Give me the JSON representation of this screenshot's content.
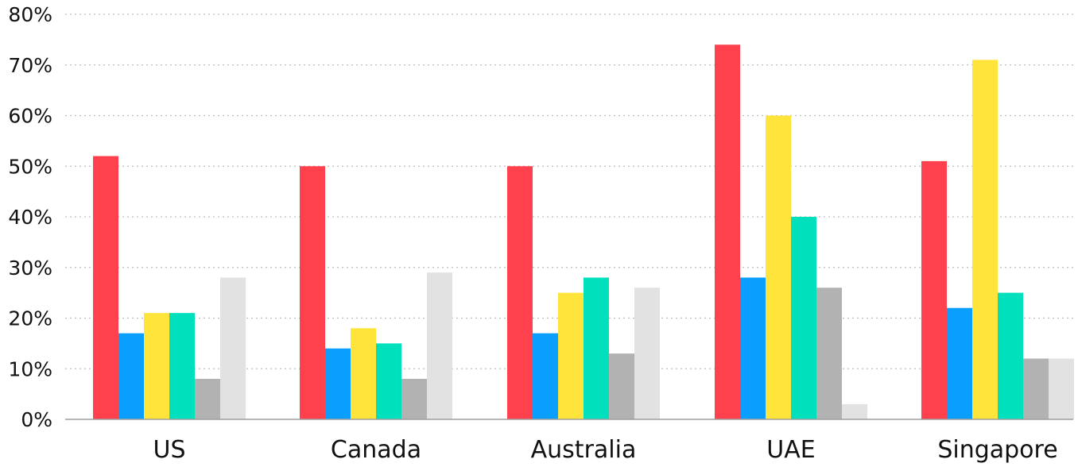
{
  "chart_data": {
    "type": "bar",
    "categories": [
      "US",
      "Canada",
      "Australia",
      "UAE",
      "Singapore"
    ],
    "series": [
      {
        "color": "#ff414d",
        "values": [
          52,
          50,
          50,
          74,
          51
        ]
      },
      {
        "color": "#0a9eff",
        "values": [
          17,
          14,
          17,
          28,
          22
        ]
      },
      {
        "color": "#ffe53b",
        "values": [
          21,
          18,
          25,
          60,
          71
        ]
      },
      {
        "color": "#00e0bc",
        "values": [
          21,
          15,
          28,
          40,
          25
        ]
      },
      {
        "color": "#b2b2b2",
        "values": [
          8,
          8,
          13,
          26,
          12
        ]
      },
      {
        "color": "#e2e2e2",
        "values": [
          28,
          29,
          26,
          3,
          12
        ]
      }
    ],
    "yticks": [
      "0%",
      "10%",
      "20%",
      "30%",
      "40%",
      "50%",
      "60%",
      "70%",
      "80%"
    ],
    "ylim": [
      0,
      80
    ],
    "grid": true,
    "legend": "none"
  }
}
